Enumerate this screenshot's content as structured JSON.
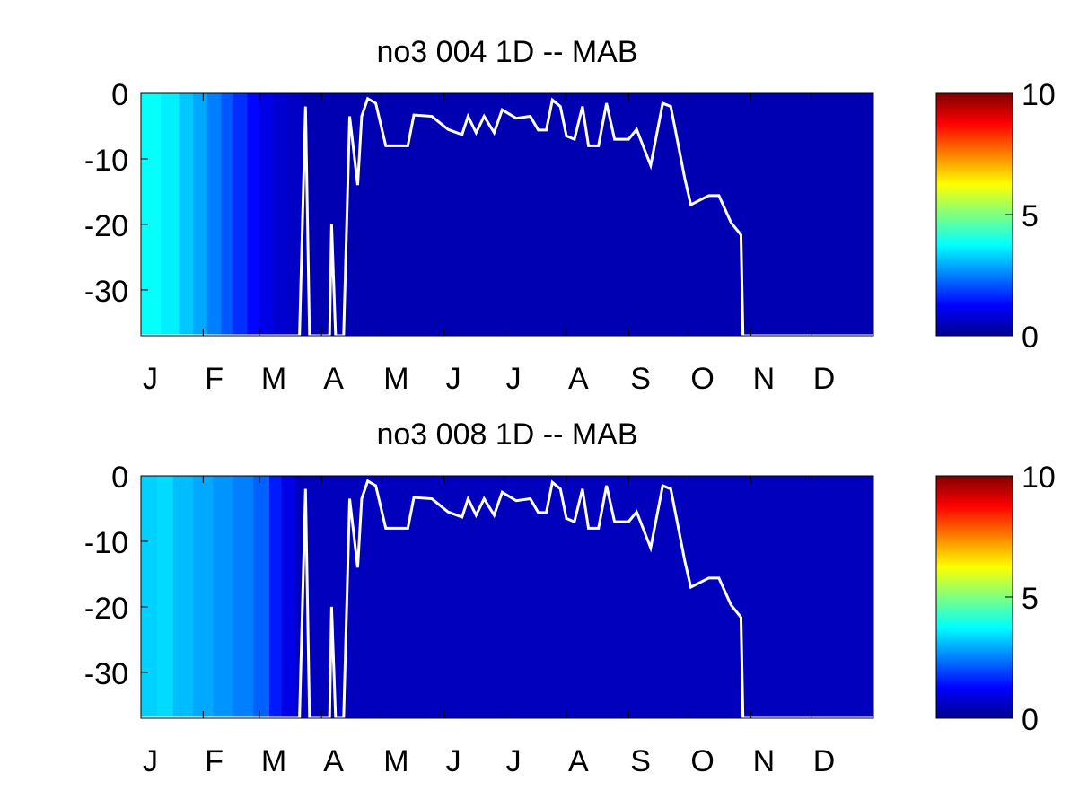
{
  "chart_data": [
    {
      "type": "heatmap",
      "title": "no3  004 1D   -- MAB",
      "xlim": [
        0,
        365
      ],
      "xticks": [
        {
          "value": 0,
          "label": "J"
        },
        {
          "value": 31,
          "label": "F"
        },
        {
          "value": 59,
          "label": "M"
        },
        {
          "value": 90,
          "label": "A"
        },
        {
          "value": 120,
          "label": "M"
        },
        {
          "value": 151,
          "label": "J"
        },
        {
          "value": 181,
          "label": "J"
        },
        {
          "value": 212,
          "label": "A"
        },
        {
          "value": 243,
          "label": "S"
        },
        {
          "value": 273,
          "label": "O"
        },
        {
          "value": 304,
          "label": "N"
        },
        {
          "value": 334,
          "label": "D"
        }
      ],
      "ylim": [
        -37,
        0
      ],
      "yticks": [
        0,
        -10,
        -20,
        -30
      ],
      "clim": [
        0,
        10
      ],
      "cticks": [
        0,
        5,
        10
      ],
      "colormap": "jet",
      "heatmap": {
        "bins": [
          0,
          10,
          19,
          26,
          33,
          40,
          46,
          53,
          59,
          66,
          73,
          80,
          365
        ],
        "values": [
          3.8,
          3.6,
          3.2,
          2.9,
          2.5,
          2.1,
          1.7,
          1.3,
          1.0,
          0.8,
          0.7,
          0.5
        ]
      },
      "line": {
        "color": "#ffffff",
        "x": [
          0,
          79,
          82,
          84,
          94,
          95,
          97,
          101,
          104,
          108,
          110,
          113,
          117,
          122,
          133,
          136,
          145,
          153,
          160,
          163,
          167,
          171,
          176,
          180,
          187,
          194,
          198,
          202,
          205,
          209,
          212,
          216,
          220,
          223,
          228,
          232,
          236,
          243,
          247,
          254,
          260,
          264,
          271,
          274,
          283,
          288,
          294,
          299,
          300,
          365
        ],
        "values": [
          -37,
          -37,
          -2,
          -37,
          -37,
          -20,
          -37,
          -37,
          -3.5,
          -14,
          -3.5,
          -0.8,
          -1.5,
          -8,
          -8,
          -3.3,
          -3.5,
          -5.5,
          -6.3,
          -3.5,
          -6,
          -3.5,
          -6,
          -2.5,
          -3.8,
          -3.5,
          -5.6,
          -5.6,
          -1,
          -2,
          -6.5,
          -7,
          -2,
          -8,
          -8,
          -1.5,
          -7,
          -7,
          -5.5,
          -11,
          -1.5,
          -2,
          -13,
          -17,
          -15.6,
          -15.6,
          -19.7,
          -21.6,
          -37,
          -37
        ]
      }
    },
    {
      "type": "heatmap",
      "title": "no3  008 1D   -- MAB",
      "xlim": [
        0,
        365
      ],
      "xticks": [
        {
          "value": 0,
          "label": "J"
        },
        {
          "value": 31,
          "label": "F"
        },
        {
          "value": 59,
          "label": "M"
        },
        {
          "value": 90,
          "label": "A"
        },
        {
          "value": 120,
          "label": "M"
        },
        {
          "value": 151,
          "label": "J"
        },
        {
          "value": 181,
          "label": "J"
        },
        {
          "value": 212,
          "label": "A"
        },
        {
          "value": 243,
          "label": "S"
        },
        {
          "value": 273,
          "label": "O"
        },
        {
          "value": 304,
          "label": "N"
        },
        {
          "value": 334,
          "label": "D"
        }
      ],
      "ylim": [
        -37,
        0
      ],
      "yticks": [
        0,
        -10,
        -20,
        -30
      ],
      "clim": [
        0,
        10
      ],
      "cticks": [
        0,
        5,
        10
      ],
      "colormap": "jet",
      "heatmap": {
        "bins": [
          0,
          8,
          16,
          26,
          36,
          46,
          56,
          64,
          70,
          77,
          365
        ],
        "values": [
          3.3,
          3.4,
          3.1,
          2.9,
          2.7,
          2.5,
          2.2,
          1.5,
          1.0,
          0.6
        ]
      },
      "line": {
        "color": "#ffffff",
        "x": [
          0,
          79,
          82,
          84,
          94,
          95,
          97,
          101,
          104,
          108,
          110,
          113,
          117,
          122,
          133,
          136,
          145,
          153,
          160,
          163,
          167,
          171,
          176,
          180,
          187,
          194,
          198,
          202,
          205,
          209,
          212,
          216,
          220,
          223,
          228,
          232,
          236,
          243,
          247,
          254,
          260,
          264,
          271,
          274,
          283,
          288,
          294,
          299,
          300,
          365
        ],
        "values": [
          -37,
          -37,
          -2,
          -37,
          -37,
          -20,
          -37,
          -37,
          -3.5,
          -14,
          -3.5,
          -0.8,
          -1.5,
          -8,
          -8,
          -3.3,
          -3.5,
          -5.5,
          -6.3,
          -3.5,
          -6,
          -3.5,
          -6,
          -2.5,
          -3.8,
          -3.5,
          -5.6,
          -5.6,
          -1,
          -2,
          -6.5,
          -7,
          -2,
          -8,
          -8,
          -1.5,
          -7,
          -7,
          -5.5,
          -11,
          -1.5,
          -2,
          -13,
          -17,
          -15.6,
          -15.6,
          -19.7,
          -21.6,
          -37,
          -37
        ]
      }
    }
  ]
}
